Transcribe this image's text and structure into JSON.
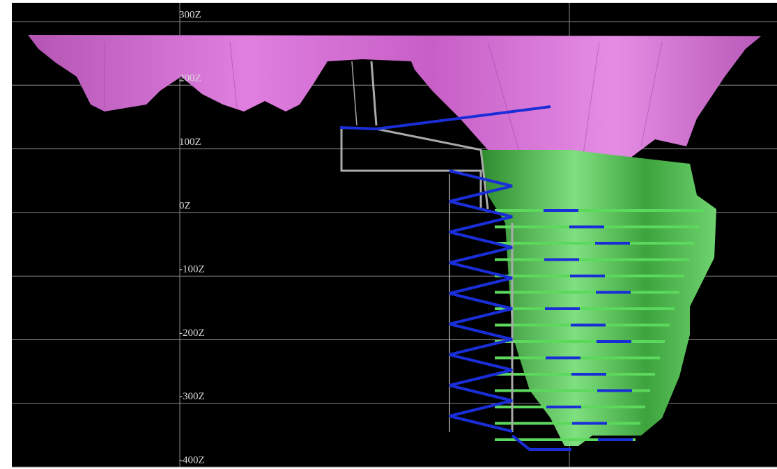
{
  "elevation_labels": [
    "300Z",
    "200Z",
    "100Z",
    "0Z",
    "-100Z",
    "-200Z",
    "-300Z",
    "-400Z"
  ]
}
